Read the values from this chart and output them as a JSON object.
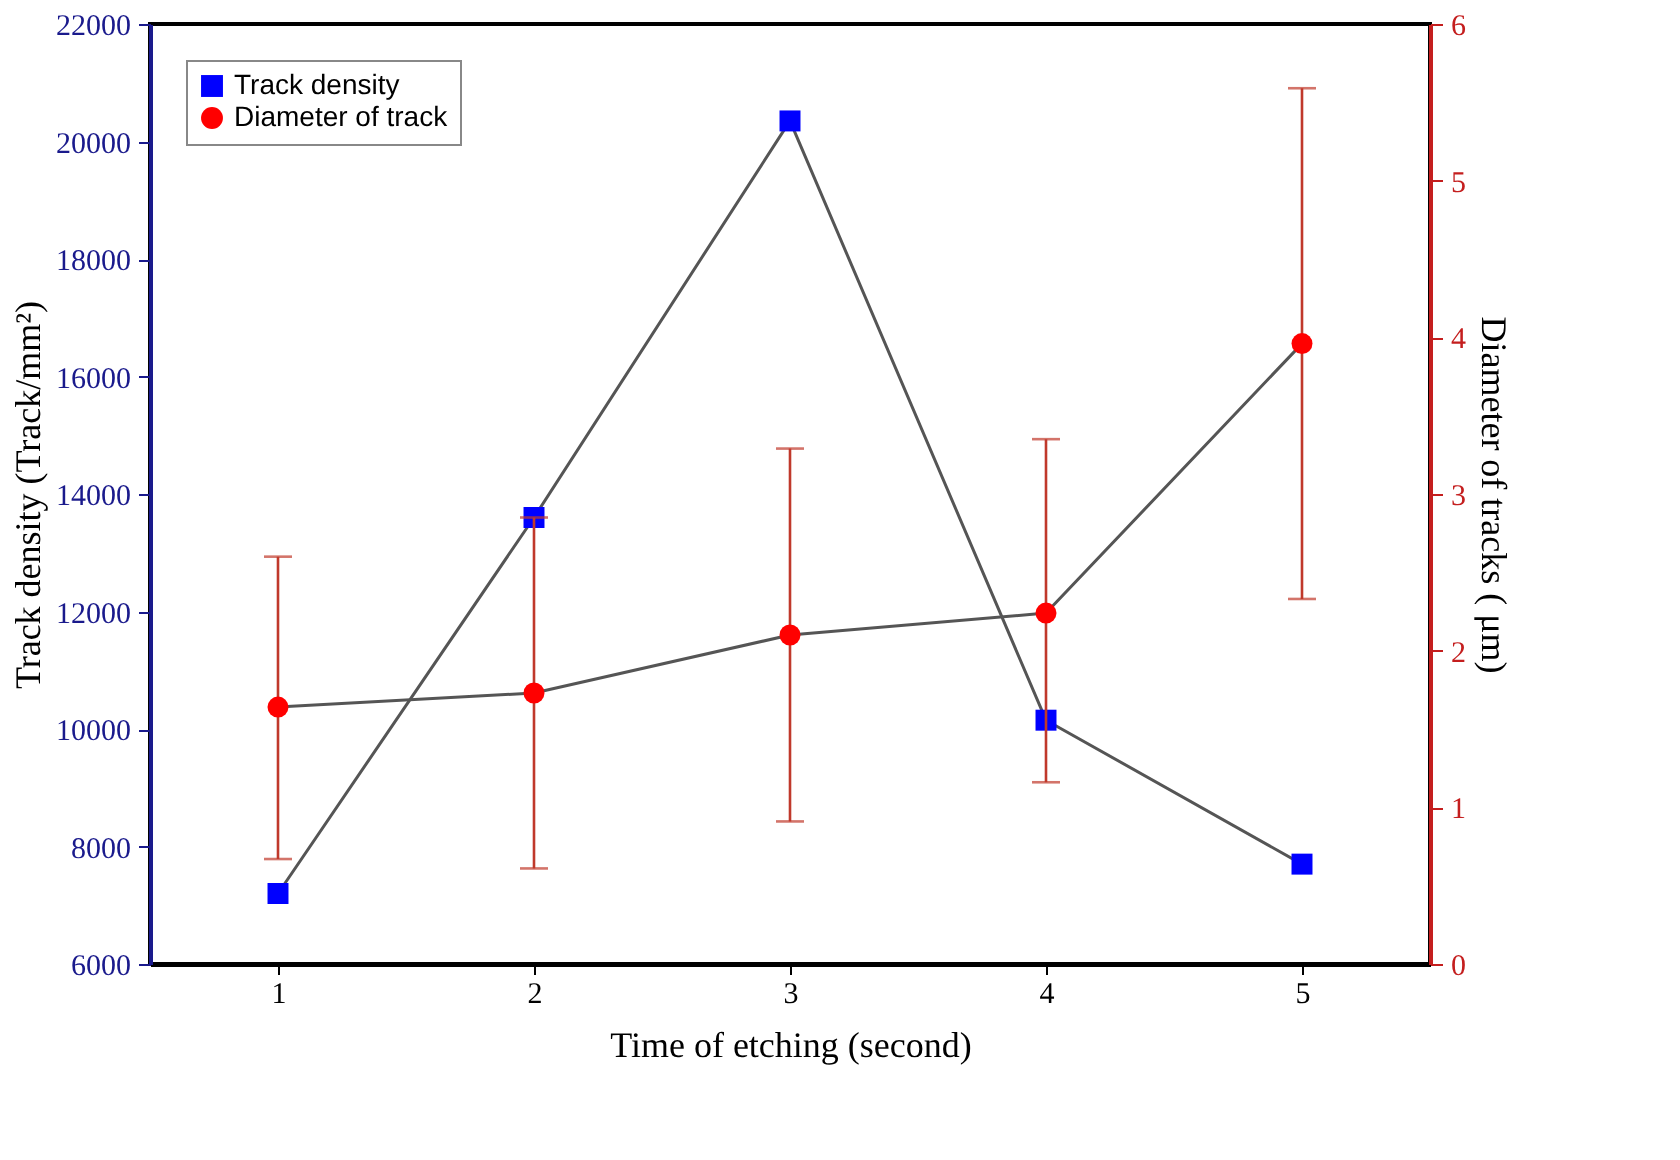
{
  "chart_data": {
    "type": "line",
    "xlabel": "Time of etching (second)",
    "ylabel": "Track density (Track/mm²)",
    "y2label": "Diameter of tracks ( μm)",
    "x": [
      1,
      2,
      3,
      4,
      5
    ],
    "xlim": [
      0.5,
      5.5
    ],
    "xticks": [
      1,
      2,
      3,
      4,
      5
    ],
    "ylim": [
      6000,
      22000
    ],
    "yticks": [
      6000,
      8000,
      10000,
      12000,
      14000,
      16000,
      18000,
      20000,
      22000
    ],
    "y2lim": [
      0,
      6
    ],
    "y2ticks": [
      0,
      1,
      2,
      3,
      4,
      5,
      6
    ],
    "grid": false,
    "legend": "top left",
    "line_style": "solid",
    "series": [
      {
        "name": "Track density",
        "color": "#0000ff",
        "marker": "square",
        "values": [
          7200,
          13600,
          20350,
          10150,
          7700
        ]
      },
      {
        "name": "Diameter of track",
        "color": "#ff0000",
        "marker": "circle",
        "axis": "y2",
        "values": [
          1.64,
          1.73,
          2.1,
          2.24,
          3.96
        ],
        "errors": [
          [
            0.67,
            2.6
          ],
          [
            0.61,
            2.85
          ],
          [
            0.91,
            3.29
          ],
          [
            1.16,
            3.35
          ],
          [
            2.33,
            5.59
          ]
        ]
      }
    ]
  }
}
